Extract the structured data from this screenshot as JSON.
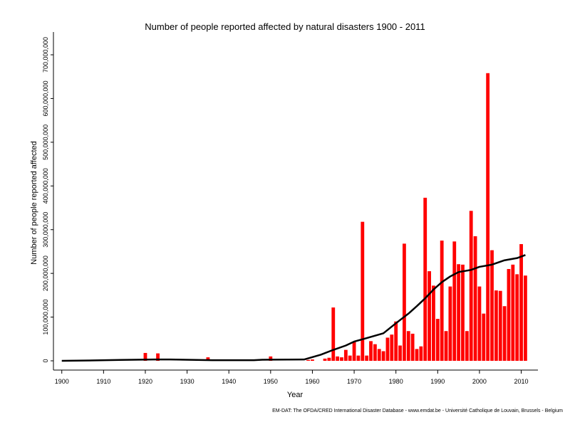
{
  "chart_data": {
    "type": "bar",
    "title": "Number of people reported affected by natural disasters 1900 - 2011",
    "xlabel": "Year",
    "ylabel": "Number of people reported affected",
    "credit": "EM-DAT: The OFDA/CRED International Disaster Database - www.emdat.be - Université Catholique de Louvain, Brussels - Belgium",
    "bar_color": "#ff0000",
    "line_color": "#000000",
    "xlim": [
      1898,
      2014
    ],
    "ylim": [
      0,
      700000000
    ],
    "x_ticks": [
      1900,
      1910,
      1920,
      1930,
      1940,
      1950,
      1960,
      1970,
      1980,
      1990,
      2000,
      2010
    ],
    "y_ticks": [
      {
        "value": 0,
        "label": "0"
      },
      {
        "value": 100000000,
        "label": "100,000,000"
      },
      {
        "value": 200000000,
        "label": "200,000,000"
      },
      {
        "value": 300000000,
        "label": "300,000,000"
      },
      {
        "value": 400000000,
        "label": "400,000,000"
      },
      {
        "value": 500000000,
        "label": "500,000,000"
      },
      {
        "value": 600000000,
        "label": "600,000,000"
      },
      {
        "value": 700000000,
        "label": "700,000,000"
      }
    ],
    "bars": [
      {
        "year": 1920,
        "value": 18000000
      },
      {
        "year": 1923,
        "value": 17000000
      },
      {
        "year": 1935,
        "value": 8000000
      },
      {
        "year": 1950,
        "value": 10000000
      },
      {
        "year": 1959,
        "value": 2000000
      },
      {
        "year": 1960,
        "value": 3000000
      },
      {
        "year": 1963,
        "value": 5000000
      },
      {
        "year": 1964,
        "value": 7000000
      },
      {
        "year": 1965,
        "value": 122000000
      },
      {
        "year": 1966,
        "value": 10000000
      },
      {
        "year": 1967,
        "value": 8000000
      },
      {
        "year": 1968,
        "value": 25000000
      },
      {
        "year": 1969,
        "value": 12000000
      },
      {
        "year": 1970,
        "value": 43000000
      },
      {
        "year": 1971,
        "value": 12000000
      },
      {
        "year": 1972,
        "value": 318000000
      },
      {
        "year": 1973,
        "value": 12000000
      },
      {
        "year": 1974,
        "value": 45000000
      },
      {
        "year": 1975,
        "value": 38000000
      },
      {
        "year": 1976,
        "value": 27000000
      },
      {
        "year": 1977,
        "value": 22000000
      },
      {
        "year": 1978,
        "value": 53000000
      },
      {
        "year": 1979,
        "value": 60000000
      },
      {
        "year": 1980,
        "value": 90000000
      },
      {
        "year": 1981,
        "value": 35000000
      },
      {
        "year": 1982,
        "value": 268000000
      },
      {
        "year": 1983,
        "value": 68000000
      },
      {
        "year": 1984,
        "value": 62000000
      },
      {
        "year": 1985,
        "value": 27000000
      },
      {
        "year": 1986,
        "value": 33000000
      },
      {
        "year": 1987,
        "value": 373000000
      },
      {
        "year": 1988,
        "value": 205000000
      },
      {
        "year": 1989,
        "value": 172000000
      },
      {
        "year": 1990,
        "value": 96000000
      },
      {
        "year": 1991,
        "value": 275000000
      },
      {
        "year": 1992,
        "value": 68000000
      },
      {
        "year": 1993,
        "value": 170000000
      },
      {
        "year": 1994,
        "value": 273000000
      },
      {
        "year": 1995,
        "value": 221000000
      },
      {
        "year": 1996,
        "value": 220000000
      },
      {
        "year": 1997,
        "value": 68000000
      },
      {
        "year": 1998,
        "value": 343000000
      },
      {
        "year": 1999,
        "value": 285000000
      },
      {
        "year": 2000,
        "value": 170000000
      },
      {
        "year": 2001,
        "value": 108000000
      },
      {
        "year": 2002,
        "value": 658000000
      },
      {
        "year": 2003,
        "value": 253000000
      },
      {
        "year": 2004,
        "value": 161000000
      },
      {
        "year": 2005,
        "value": 160000000
      },
      {
        "year": 2006,
        "value": 125000000
      },
      {
        "year": 2007,
        "value": 210000000
      },
      {
        "year": 2008,
        "value": 220000000
      },
      {
        "year": 2009,
        "value": 198000000
      },
      {
        "year": 2010,
        "value": 267000000
      },
      {
        "year": 2011,
        "value": 195000000
      }
    ],
    "trend_line": [
      {
        "year": 1900,
        "value": 0
      },
      {
        "year": 1908,
        "value": 1000000
      },
      {
        "year": 1914,
        "value": 2000000
      },
      {
        "year": 1922,
        "value": 3000000
      },
      {
        "year": 1926,
        "value": 3000000
      },
      {
        "year": 1936,
        "value": 1500000
      },
      {
        "year": 1946,
        "value": 1500000
      },
      {
        "year": 1948,
        "value": 2500000
      },
      {
        "year": 1958,
        "value": 3000000
      },
      {
        "year": 1962,
        "value": 14000000
      },
      {
        "year": 1965,
        "value": 25000000
      },
      {
        "year": 1968,
        "value": 35000000
      },
      {
        "year": 1970,
        "value": 44000000
      },
      {
        "year": 1973,
        "value": 52000000
      },
      {
        "year": 1977,
        "value": 63000000
      },
      {
        "year": 1980,
        "value": 86000000
      },
      {
        "year": 1983,
        "value": 108000000
      },
      {
        "year": 1985,
        "value": 125000000
      },
      {
        "year": 1987,
        "value": 143000000
      },
      {
        "year": 1989,
        "value": 163000000
      },
      {
        "year": 1991,
        "value": 180000000
      },
      {
        "year": 1993,
        "value": 193000000
      },
      {
        "year": 1995,
        "value": 203000000
      },
      {
        "year": 1998,
        "value": 208000000
      },
      {
        "year": 2000,
        "value": 215000000
      },
      {
        "year": 2003,
        "value": 220000000
      },
      {
        "year": 2006,
        "value": 230000000
      },
      {
        "year": 2009,
        "value": 235000000
      },
      {
        "year": 2011,
        "value": 242000000
      }
    ]
  }
}
